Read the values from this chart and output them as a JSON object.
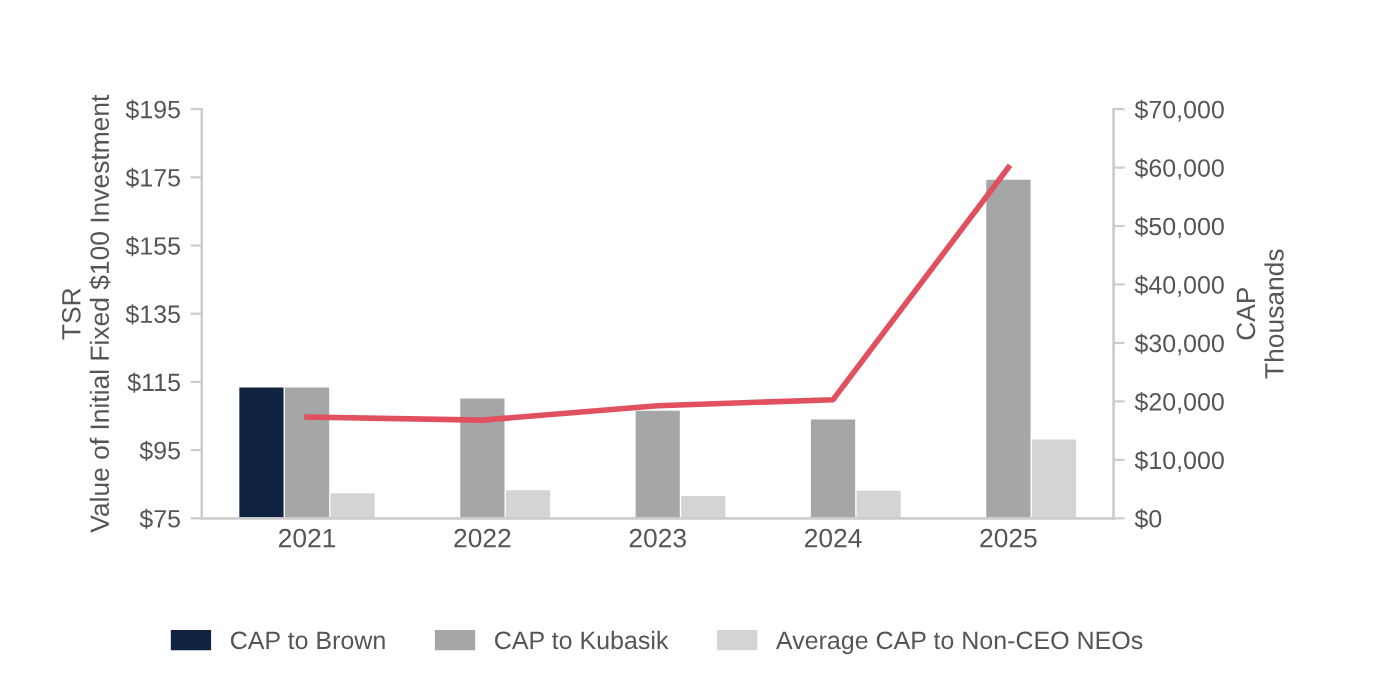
{
  "chart_data": {
    "type": "bar",
    "categories": [
      "2021",
      "2022",
      "2023",
      "2024",
      "2025"
    ],
    "ylabel": "TSR\nValue of Initial Fixed $100 Investment",
    "y2label": "CAP\nThousands",
    "ylim": [
      75,
      195
    ],
    "yticks": [
      {
        "value": 75,
        "label": "$75"
      },
      {
        "value": 95,
        "label": "$95"
      },
      {
        "value": 115,
        "label": "$115"
      },
      {
        "value": 135,
        "label": "$135"
      },
      {
        "value": 155,
        "label": "$155"
      },
      {
        "value": 175,
        "label": "$175"
      },
      {
        "value": 195,
        "label": "$195"
      }
    ],
    "y2lim": [
      0,
      70000
    ],
    "y2ticks": [
      {
        "value": 0,
        "label": "$0"
      },
      {
        "value": 10000,
        "label": "$10,000"
      },
      {
        "value": 20000,
        "label": "$20,000"
      },
      {
        "value": 30000,
        "label": "$30,000"
      },
      {
        "value": 40000,
        "label": "$40,000"
      },
      {
        "value": 50000,
        "label": "$50,000"
      },
      {
        "value": 60000,
        "label": "$60,000"
      },
      {
        "value": 70000,
        "label": "$70,000"
      }
    ],
    "series": [
      {
        "name": "CAP to Brown",
        "axis": "y2",
        "color": "#0f2240",
        "values": [
          22400,
          null,
          null,
          null,
          null
        ]
      },
      {
        "name": "CAP to Kubasik",
        "axis": "y2",
        "color": "#a5a6a8",
        "values": [
          22400,
          20500,
          18400,
          16900,
          57900
        ]
      },
      {
        "name": "Average CAP to Non-CEO NEOs",
        "axis": "y2",
        "color": "#d3d4d6",
        "values": [
          4300,
          4800,
          3800,
          4700,
          13500
        ]
      },
      {
        "type": "line",
        "axis": "y",
        "color": "#e0505e",
        "values": [
          104.7,
          103.8,
          108,
          109.8,
          177.9
        ]
      }
    ],
    "grid": false,
    "legend": "bottom"
  }
}
